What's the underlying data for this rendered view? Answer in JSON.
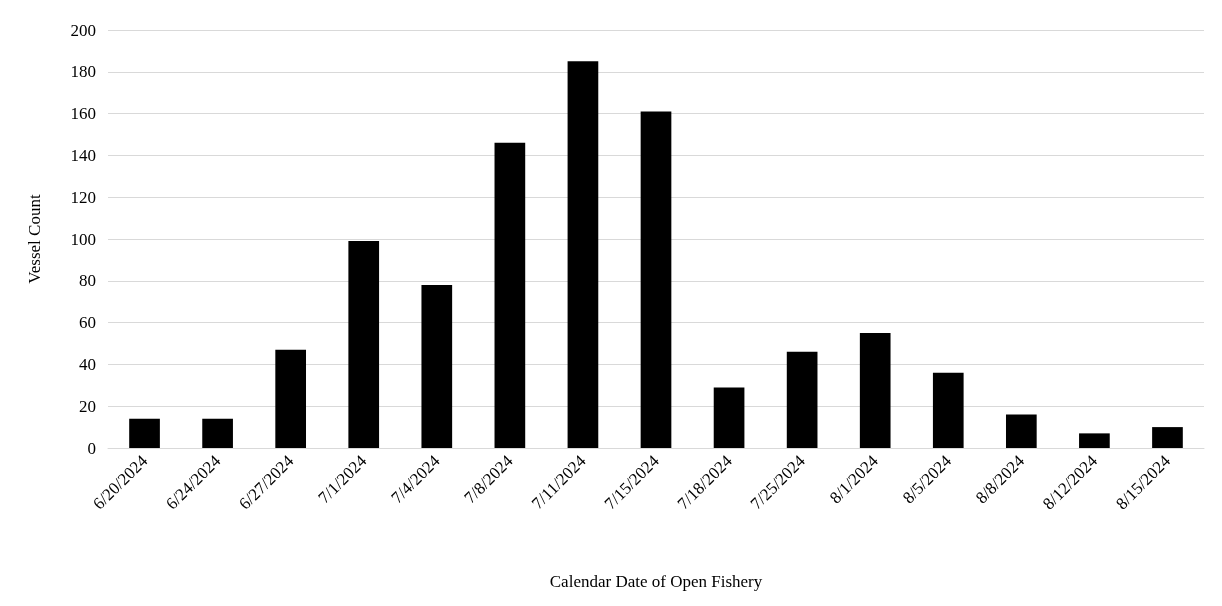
{
  "chart_data": {
    "type": "bar",
    "xlabel": "Calendar Date of Open Fishery",
    "ylabel": "Vessel Count",
    "categories": [
      "6/20/2024",
      "6/24/2024",
      "6/27/2024",
      "7/1/2024",
      "7/4/2024",
      "7/8/2024",
      "7/11/2024",
      "7/15/2024",
      "7/18/2024",
      "7/25/2024",
      "8/1/2024",
      "8/5/2024",
      "8/8/2024",
      "8/12/2024",
      "8/15/2024"
    ],
    "values": [
      14,
      14,
      47,
      99,
      78,
      146,
      185,
      161,
      29,
      46,
      55,
      36,
      16,
      7,
      10
    ],
    "color": "#000000",
    "ylim": [
      0,
      200
    ],
    "yticks": [
      0,
      20,
      40,
      60,
      80,
      100,
      120,
      140,
      160,
      180,
      200
    ],
    "grid": "y"
  }
}
